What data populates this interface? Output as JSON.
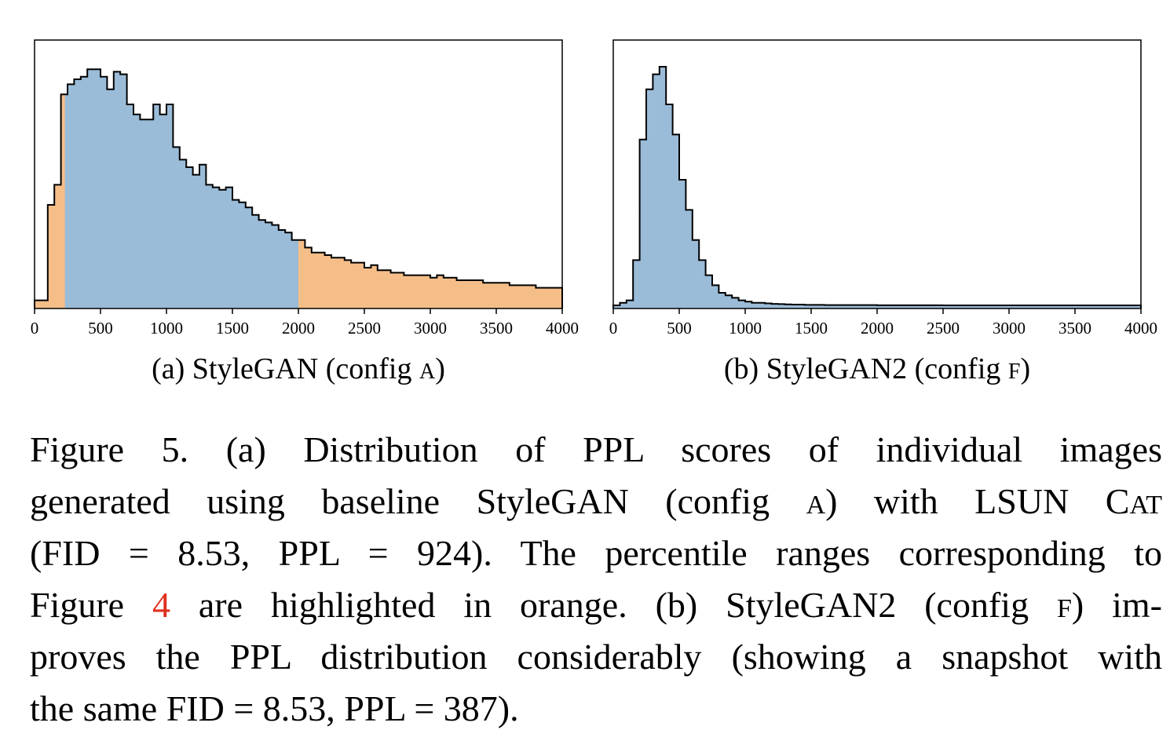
{
  "chart_data": [
    {
      "type": "histogram",
      "title": "(a) StyleGAN (config A)",
      "x_ticks": [
        "0",
        "500",
        "1000",
        "1500",
        "2000",
        "2500",
        "3000",
        "3500",
        "4000"
      ],
      "xlim": [
        0,
        4000
      ],
      "bin_width": 50,
      "highlight_ranges": [
        [
          0,
          230
        ],
        [
          2000,
          4000
        ]
      ],
      "colors": {
        "main": "#9bbcd8",
        "highlight": "#f5be89",
        "edge": "#000000"
      },
      "values": [
        2,
        2,
        40,
        48,
        84,
        88,
        90,
        91,
        94,
        94,
        91,
        86,
        93,
        92,
        80,
        76,
        74,
        74,
        80,
        76,
        80,
        63,
        58,
        55,
        52,
        56,
        48,
        47,
        46,
        47,
        42,
        41,
        39,
        36,
        34,
        33,
        32,
        30,
        29,
        26,
        26,
        23,
        21,
        21,
        20,
        19,
        19,
        18,
        17,
        17,
        15,
        16,
        14,
        14,
        13,
        13,
        12,
        12,
        12,
        12,
        11,
        12,
        11,
        11,
        10,
        10,
        10,
        10,
        9,
        9,
        9,
        9,
        8,
        8,
        8,
        8,
        7,
        7,
        7,
        7
      ]
    },
    {
      "type": "histogram",
      "title": "(b) StyleGAN2 (config F)",
      "x_ticks": [
        "0",
        "500",
        "1000",
        "1500",
        "2000",
        "2500",
        "3000",
        "3500",
        "4000"
      ],
      "xlim": [
        0,
        4000
      ],
      "bin_width": 50,
      "colors": {
        "main": "#9bbcd8",
        "edge": "#000000"
      },
      "values": [
        0,
        1,
        2,
        18,
        66,
        86,
        92,
        95,
        80,
        68,
        50,
        38,
        26,
        18,
        12,
        8,
        5,
        4,
        3,
        2,
        1.5,
        1,
        1,
        0.8,
        0.6,
        0.5,
        0.4,
        0.3,
        0.3,
        0.2,
        0.2,
        0.2,
        0.1,
        0.1,
        0.1,
        0.1,
        0.1,
        0.1,
        0.1,
        0.1,
        0.05,
        0.05,
        0.05,
        0.05,
        0.05,
        0.05,
        0.05,
        0.05,
        0.05,
        0.05,
        0,
        0,
        0,
        0,
        0,
        0,
        0,
        0,
        0,
        0,
        0,
        0,
        0,
        0,
        0,
        0,
        0,
        0,
        0,
        0,
        0,
        0,
        0,
        0,
        0,
        0,
        0,
        0,
        0,
        0
      ]
    }
  ],
  "subcaptions": {
    "a_prefix": "(a) StyleGAN (config ",
    "a_config": "A",
    "b_prefix": "(b) StyleGAN2 (config ",
    "b_config": "F",
    "close": ")"
  },
  "caption": {
    "l1": "Figure 5.    (a) Distribution of PPL scores of individual images",
    "l2a": "generated using baseline StyleGAN (config ",
    "l2b": "A",
    "l2c": ") with LSUN C",
    "l2d": "AT",
    "l3": "(FID = 8.53,  PPL = 924).  The percentile ranges corresponding to",
    "l4a": "Figure ",
    "l4ref": "4",
    "l4b": " are highlighted in orange. (b) StyleGAN2 (config ",
    "l4c": "F",
    "l4d": ") im-",
    "l5": "proves the PPL distribution considerably (showing a snapshot with",
    "l6": "the same FID = 8.53, PPL = 387)."
  }
}
